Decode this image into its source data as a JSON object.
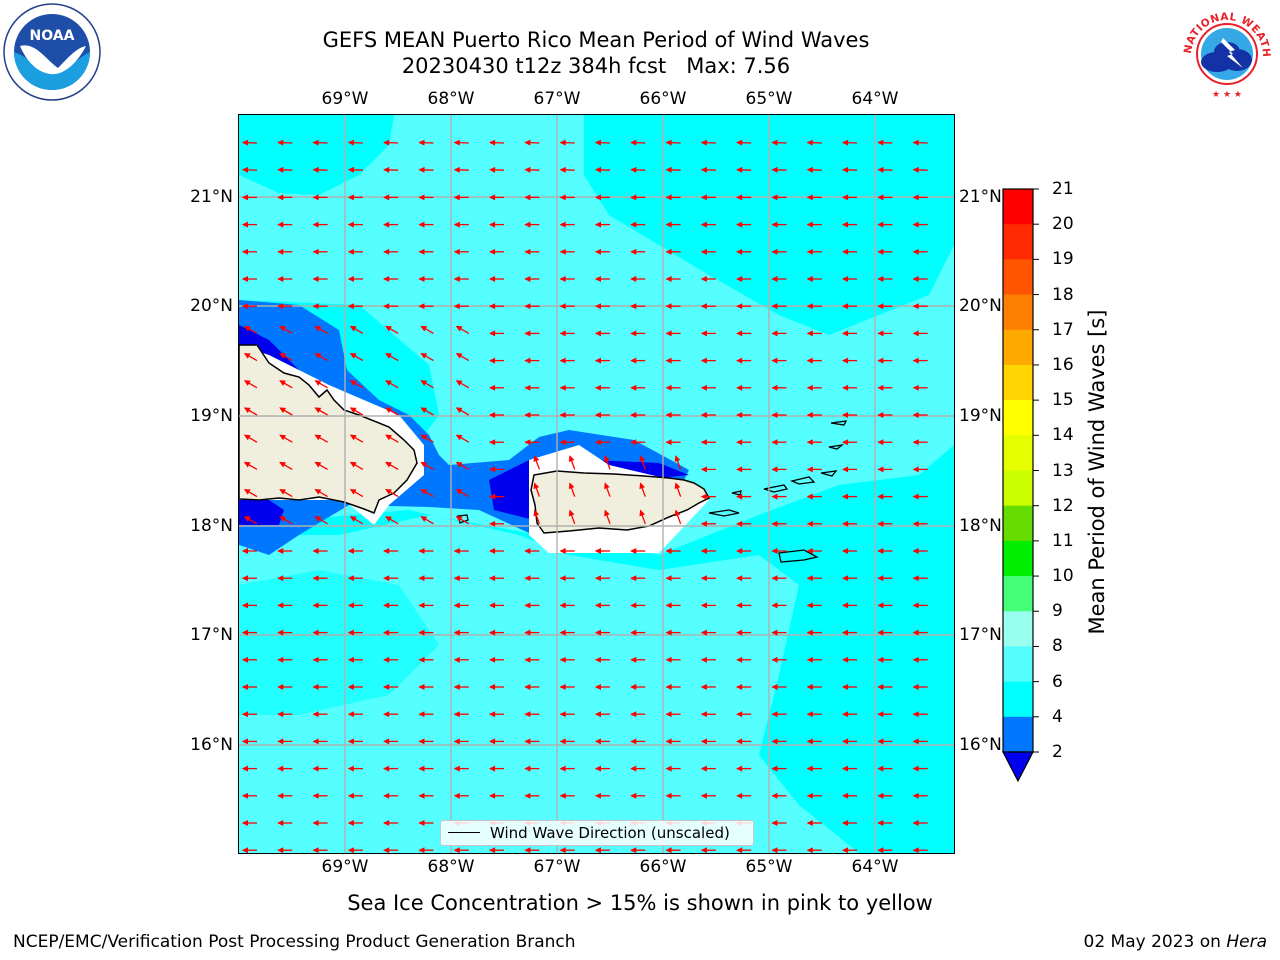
{
  "title": {
    "line1": "GEFS MEAN Puerto Rico Mean Period of Wind Waves",
    "line2": "20230430 t12z 384h fcst   Max: 7.56"
  },
  "axes": {
    "lon_labels": [
      "69°W",
      "68°W",
      "67°W",
      "66°W",
      "65°W",
      "64°W"
    ],
    "lat_labels": [
      "21°N",
      "20°N",
      "19°N",
      "18°N",
      "17°N",
      "16°N"
    ]
  },
  "legend": {
    "label": "Wind Wave Direction (unscaled)"
  },
  "colorbar": {
    "label": "Mean Period of Wind Waves [s]",
    "ticks": [
      "21",
      "20",
      "19",
      "18",
      "17",
      "16",
      "15",
      "14",
      "13",
      "12",
      "11",
      "10",
      "9",
      "8",
      "6",
      "4",
      "2"
    ],
    "colors": [
      "#ff0000",
      "#ff2a00",
      "#ff5500",
      "#ff8000",
      "#ffaa00",
      "#ffd400",
      "#ffff00",
      "#e6ff00",
      "#ccff00",
      "#66dd00",
      "#00ee00",
      "#44ff77",
      "#99ffee",
      "#55ffff",
      "#00ffff",
      "#0077ff",
      "#0000ee"
    ]
  },
  "map_colors": {
    "sea_light": "#55ffff",
    "sea_cyan": "#00ffff",
    "sea_blue": "#0077ff",
    "sea_dark": "#0000ee",
    "land": "#f0eedc",
    "arrow": "#ff0000"
  },
  "logos": {
    "noaa_text": "NOAA",
    "nws_text": "NATIONAL WEATHER SERVICE"
  },
  "subtitle": "Sea Ice Concentration > 15% is shown in pink to yellow",
  "footer": {
    "left": "NCEP/EMC/Verification Post Processing Product Generation Branch",
    "right_date": "02 May 2023 on",
    "right_machine": "Hera"
  }
}
